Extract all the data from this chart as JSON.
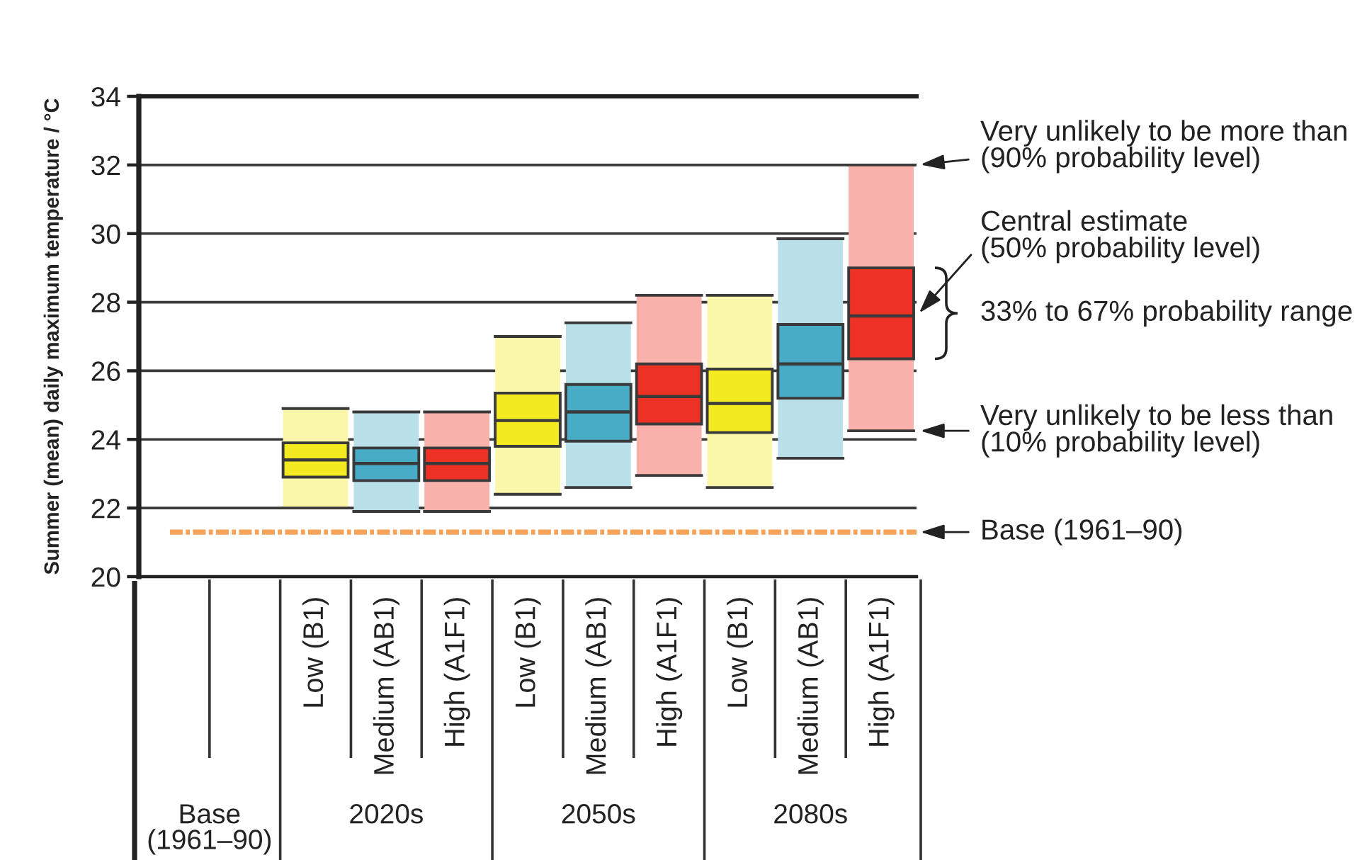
{
  "chart_data": {
    "type": "box",
    "ylabel": "Summer (mean) daily maximum temperature / °C",
    "categories": [
      null,
      null,
      "Low (B1)",
      "Medium (AB1)",
      "High (A1F1)",
      "Low (B1)",
      "Medium (AB1)",
      "High (A1F1)",
      "Low (B1)",
      "Medium (AB1)",
      "High (A1F1)"
    ],
    "boxes": [
      null,
      null,
      {
        "low": 22.0,
        "q1": 22.9,
        "median": 23.4,
        "q3": 23.9,
        "high": 24.9
      },
      {
        "low": 21.9,
        "q1": 22.8,
        "median": 23.3,
        "q3": 23.75,
        "high": 24.8
      },
      {
        "low": 21.9,
        "q1": 22.8,
        "median": 23.3,
        "q3": 23.75,
        "high": 24.8
      },
      {
        "low": 22.4,
        "q1": 23.8,
        "median": 24.55,
        "q3": 25.35,
        "high": 27.0
      },
      {
        "low": 22.6,
        "q1": 23.95,
        "median": 24.8,
        "q3": 25.6,
        "high": 27.4
      },
      {
        "low": 22.95,
        "q1": 24.45,
        "median": 25.25,
        "q3": 26.2,
        "high": 28.2
      },
      {
        "low": 22.6,
        "q1": 24.2,
        "median": 25.05,
        "q3": 26.05,
        "high": 28.2
      },
      {
        "low": 23.45,
        "q1": 25.2,
        "median": 26.2,
        "q3": 27.35,
        "high": 29.85
      },
      {
        "low": 24.25,
        "q1": 26.35,
        "median": 27.6,
        "q3": 29.0,
        "high": 32.0
      }
    ],
    "colors": [
      null,
      null,
      "#f3ea1f",
      "#48acc6",
      "#ee3125",
      "#f3ea1f",
      "#48acc6",
      "#ee3125",
      "#f3ea1f",
      "#48acc6",
      "#ee3125"
    ],
    "ylim": [
      20,
      34
    ],
    "yticks": [
      20,
      22,
      24,
      26,
      28,
      30,
      32,
      34
    ],
    "grid": "y",
    "ref_lines": [
      {
        "axis": "y",
        "value": 21.3,
        "label": "Base (1961–90)",
        "color": "#f8a35a",
        "line_style": "dashed"
      }
    ],
    "annotations": [
      "Very unlikely to be more than\n(90% probability level)",
      "Central estimate\n(50% probability level)",
      "33% to 67% probability range",
      "Very unlikely to be less than\n(10% probability level)",
      "Base\n(1961–90)",
      "2020s",
      "2050s",
      "2080s"
    ]
  }
}
